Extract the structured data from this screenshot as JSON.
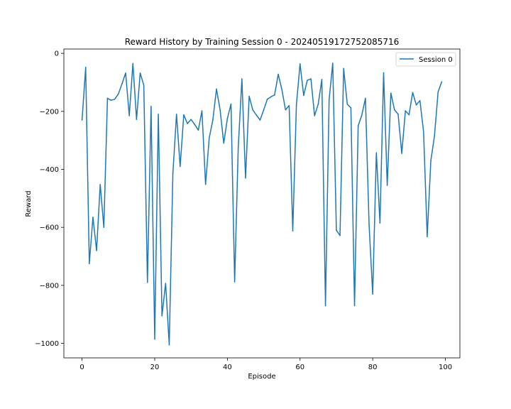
{
  "chart_data": {
    "type": "line",
    "title": "Reward History by Training Session 0 - 20240519172752085716",
    "xlabel": "Episode",
    "ylabel": "Reward",
    "xlim": [
      -5,
      104
    ],
    "ylim": [
      -1050,
      15
    ],
    "xticks": [
      0,
      20,
      40,
      60,
      80,
      100
    ],
    "yticks": [
      0,
      -200,
      -400,
      -600,
      -800,
      -1000
    ],
    "grid": false,
    "legend_position": "top-right",
    "series": [
      {
        "name": "Session 0",
        "color": "#1f77b4",
        "x": [
          0,
          1,
          2,
          3,
          4,
          5,
          6,
          7,
          8,
          9,
          10,
          11,
          12,
          13,
          14,
          15,
          16,
          17,
          18,
          19,
          20,
          21,
          22,
          23,
          24,
          25,
          26,
          27,
          28,
          29,
          30,
          31,
          32,
          33,
          34,
          35,
          36,
          37,
          38,
          39,
          40,
          41,
          42,
          43,
          44,
          45,
          46,
          47,
          48,
          49,
          50,
          51,
          52,
          53,
          54,
          55,
          56,
          57,
          58,
          59,
          60,
          61,
          62,
          63,
          64,
          65,
          66,
          67,
          68,
          69,
          70,
          71,
          72,
          73,
          74,
          75,
          76,
          77,
          78,
          79,
          80,
          81,
          82,
          83,
          84,
          85,
          86,
          87,
          88,
          89,
          90,
          91,
          92,
          93,
          94,
          95,
          96,
          97,
          98,
          99
        ],
        "y": [
          -230,
          -48,
          -725,
          -565,
          -680,
          -452,
          -600,
          -155,
          -162,
          -158,
          -140,
          -105,
          -68,
          -215,
          -35,
          -228,
          -68,
          -110,
          -790,
          -183,
          -985,
          -210,
          -905,
          -793,
          -1005,
          -415,
          -210,
          -390,
          -212,
          -242,
          -228,
          -245,
          -265,
          -198,
          -452,
          -292,
          -230,
          -123,
          -195,
          -310,
          -225,
          -175,
          -788,
          -322,
          -88,
          -430,
          -148,
          -195,
          -213,
          -230,
          -195,
          -158,
          -150,
          -143,
          -72,
          -125,
          -195,
          -180,
          -612,
          -178,
          -36,
          -145,
          -93,
          -88,
          -215,
          -175,
          -90,
          -870,
          -160,
          -34,
          -610,
          -628,
          -52,
          -175,
          -188,
          -870,
          -250,
          -213,
          -155,
          -590,
          -830,
          -343,
          -585,
          -67,
          -455,
          -137,
          -195,
          -210,
          -345,
          -198,
          -212,
          -135,
          -178,
          -163,
          -270,
          -632,
          -370,
          -285,
          -133,
          -98
        ]
      }
    ]
  }
}
